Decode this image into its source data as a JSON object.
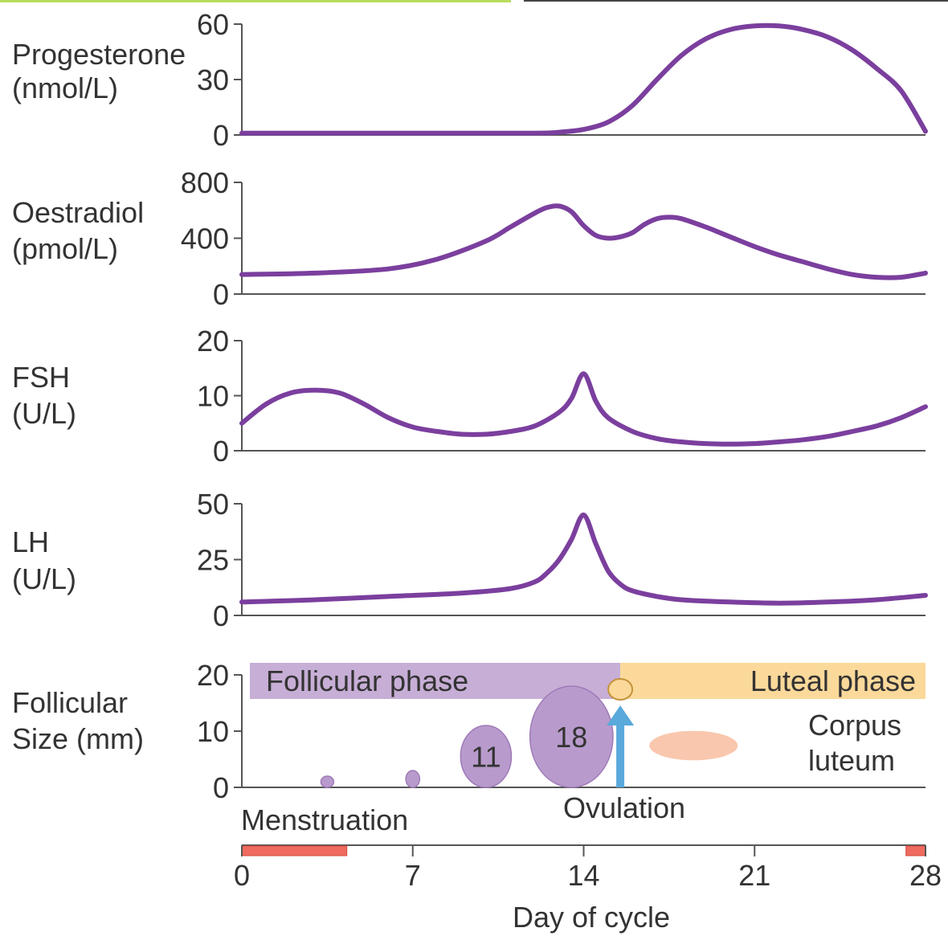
{
  "chart_data": {
    "type": "line",
    "x_axis": {
      "label": "Day of cycle",
      "range": [
        0,
        28
      ],
      "ticks": [
        "0",
        "7",
        "14",
        "21",
        "28"
      ]
    },
    "colors": {
      "curve": "#7b3f9e",
      "follicular_bar": "#c7aed6",
      "luteal_bar": "#fbd99a",
      "follicle": "#b89bcc",
      "corpus_luteum": "#f9c7ad",
      "ovulation_arrow": "#5aa9dc",
      "menstruation": "#ef6b5f",
      "axis": "#555555"
    },
    "panels": [
      {
        "id": "progesterone",
        "label_lines": [
          "Progesterone",
          "(nmol/L)"
        ],
        "ylim": [
          0,
          60
        ],
        "ticks": [
          "60",
          "30",
          "0"
        ],
        "tick_values": [
          60,
          30,
          0
        ],
        "series": {
          "x": [
            0,
            4,
            8,
            12,
            13,
            14,
            15,
            16,
            17,
            18,
            19,
            20,
            21,
            22,
            23,
            24,
            25,
            26,
            27,
            28
          ],
          "y": [
            1,
            1,
            1,
            1,
            1.5,
            3,
            7,
            16,
            30,
            43,
            52,
            57,
            59,
            59,
            57,
            53,
            46,
            36,
            24,
            2
          ]
        }
      },
      {
        "id": "oestradiol",
        "label_lines": [
          "Oestradiol",
          "(pmol/L)"
        ],
        "ylim": [
          0,
          800
        ],
        "ticks": [
          "800",
          "400",
          "0"
        ],
        "tick_values": [
          800,
          400,
          0
        ],
        "series": {
          "x": [
            0,
            3,
            6,
            8,
            10,
            11,
            12,
            12.5,
            13,
            13.5,
            14,
            14.5,
            15,
            15.5,
            16,
            16.5,
            17,
            17.5,
            18,
            19,
            20,
            21,
            22,
            23,
            24,
            25,
            26,
            27,
            28
          ],
          "y": [
            140,
            150,
            180,
            250,
            380,
            480,
            580,
            620,
            630,
            590,
            490,
            420,
            400,
            410,
            440,
            500,
            540,
            550,
            540,
            480,
            410,
            340,
            280,
            230,
            180,
            140,
            120,
            120,
            150
          ]
        }
      },
      {
        "id": "fsh",
        "label_lines": [
          "FSH",
          "(U/L)"
        ],
        "ylim": [
          0,
          20
        ],
        "ticks": [
          "20",
          "10",
          "0"
        ],
        "tick_values": [
          20,
          10,
          0
        ],
        "series": {
          "x": [
            0,
            1,
            2,
            3,
            4,
            5,
            6,
            7,
            8,
            9,
            10,
            11,
            12,
            13,
            13.5,
            14,
            14.5,
            15,
            16,
            17,
            18,
            19,
            20,
            21,
            22,
            23,
            24,
            25,
            26,
            27,
            28
          ],
          "y": [
            5,
            8.5,
            10.5,
            11,
            10.5,
            8.5,
            6,
            4.3,
            3.5,
            3,
            3,
            3.5,
            4.5,
            7,
            9.5,
            14,
            9,
            6,
            3.5,
            2.2,
            1.6,
            1.3,
            1.2,
            1.3,
            1.6,
            2,
            2.6,
            3.5,
            4.5,
            6,
            8
          ]
        }
      },
      {
        "id": "lh",
        "label_lines": [
          "LH",
          "(U/L)"
        ],
        "ylim": [
          0,
          50
        ],
        "ticks": [
          "50",
          "25",
          "0"
        ],
        "tick_values": [
          50,
          25,
          0
        ],
        "series": {
          "x": [
            0,
            3,
            6,
            9,
            11,
            12,
            12.5,
            13,
            13.5,
            14,
            14.5,
            15,
            15.5,
            16,
            17,
            18,
            20,
            22,
            24,
            26,
            28
          ],
          "y": [
            6,
            7,
            8.5,
            10,
            12,
            15,
            19,
            25,
            34,
            45,
            32,
            20,
            14,
            11,
            8.5,
            7,
            6,
            5.5,
            6,
            7,
            9
          ]
        }
      },
      {
        "id": "follicular_size",
        "label_lines": [
          "Follicular",
          "Size (mm)"
        ],
        "ylim": [
          0,
          20
        ],
        "ticks": [
          "20",
          "10",
          "0"
        ],
        "tick_values": [
          20,
          10,
          0
        ]
      }
    ],
    "phases": [
      {
        "label": "Follicular phase",
        "from": 0,
        "to": 15.5
      },
      {
        "label": "Luteal phase",
        "from": 15.5,
        "to": 28
      }
    ],
    "follicles": [
      {
        "day": 3.5,
        "size": 2,
        "label": ""
      },
      {
        "day": 7,
        "size": 3,
        "label": ""
      },
      {
        "day": 10,
        "size": 11,
        "label": "11"
      },
      {
        "day": 13.5,
        "size": 18,
        "label": "18"
      }
    ],
    "ovulation": {
      "label": "Ovulation",
      "day": 15.5
    },
    "corpus_luteum_label_lines": [
      "Corpus",
      "luteum"
    ],
    "corpus_luteum": {
      "day": 18.5,
      "size": 6
    },
    "menstruation": {
      "label": "Menstruation",
      "periods": [
        [
          0,
          4.3
        ],
        [
          27.2,
          28
        ]
      ]
    }
  }
}
